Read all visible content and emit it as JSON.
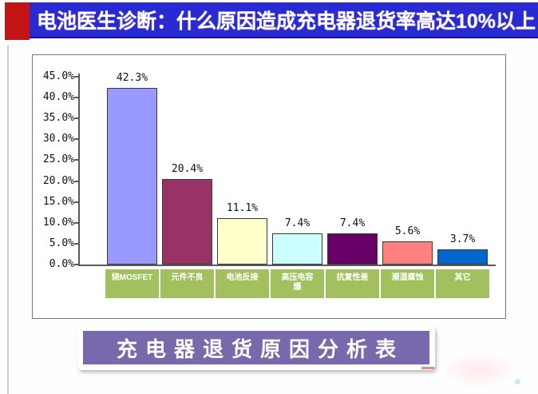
{
  "header": {
    "title": "电池医生诊断：什么原因造成充电器退货率高达10%以上",
    "bar_color": "#2a2ad2",
    "accent_color": "#c41414"
  },
  "chart_data": {
    "type": "bar",
    "title": "",
    "xlabel": "",
    "ylabel": "",
    "categories": [
      "烧MOSFET",
      "元件不良",
      "电池反接",
      "高压电容爆",
      "抗复性差",
      "潮湿腐蚀",
      "其它"
    ],
    "category_display": [
      "烧MOSFET",
      "元件不良",
      "电池反接",
      "高压电容\n爆",
      "抗复性差",
      "潮湿腐蚀",
      "其它"
    ],
    "values": [
      42.3,
      20.4,
      11.1,
      7.4,
      7.4,
      5.6,
      3.7
    ],
    "value_labels": [
      "42.3%",
      "20.4%",
      "11.1%",
      "7.4%",
      "7.4%",
      "5.6%",
      "3.7%"
    ],
    "bar_colors": [
      "#9999FF",
      "#993366",
      "#FFFFCC",
      "#CCFFFF",
      "#660066",
      "#FF8080",
      "#0066CC"
    ],
    "y_ticks": [
      "45.0%",
      "40.0%",
      "35.0%",
      "30.0%",
      "25.0%",
      "20.0%",
      "15.0%",
      "10.0%",
      "5.0%",
      "0.0%"
    ],
    "y_tick_values": [
      45,
      40,
      35,
      30,
      25,
      20,
      15,
      10,
      5,
      0
    ],
    "ylim": [
      0,
      45
    ],
    "grid": false,
    "legend": "none",
    "category_band_color": "#a2c05e"
  },
  "footer": {
    "banner_text": "充电器退货原因分析表",
    "banner_color": "#7a68ac"
  }
}
